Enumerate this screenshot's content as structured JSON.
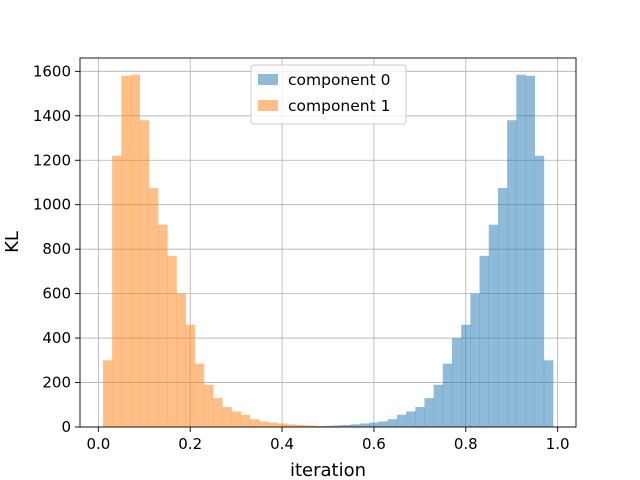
{
  "chart_data": {
    "type": "bar",
    "title": "",
    "xlabel": "iteration",
    "ylabel": "KL",
    "xlim": [
      -0.04,
      1.04
    ],
    "ylim": [
      0,
      1660
    ],
    "xticks": [
      0.0,
      0.2,
      0.4,
      0.6,
      0.8,
      1.0
    ],
    "xtick_labels": [
      "0.0",
      "0.2",
      "0.4",
      "0.6",
      "0.8",
      "1.0"
    ],
    "yticks": [
      0,
      200,
      400,
      600,
      800,
      1000,
      1200,
      1400,
      1600
    ],
    "ytick_labels": [
      "0",
      "200",
      "400",
      "600",
      "800",
      "1000",
      "1200",
      "1400",
      "1600"
    ],
    "grid": true,
    "legend_position": "top-center",
    "bin_width": 0.02,
    "series": [
      {
        "name": "component 0",
        "color": "#1f77b4",
        "opacity": 0.5,
        "bin_starts": [
          0.43,
          0.45,
          0.47,
          0.49,
          0.51,
          0.53,
          0.55,
          0.57,
          0.59,
          0.61,
          0.63,
          0.65,
          0.67,
          0.69,
          0.71,
          0.73,
          0.75,
          0.77,
          0.79,
          0.81,
          0.83,
          0.85,
          0.87,
          0.89,
          0.91,
          0.93,
          0.95,
          0.97
        ],
        "values": [
          1,
          2,
          3,
          5,
          7,
          9,
          12,
          16,
          20,
          25,
          35,
          55,
          70,
          90,
          130,
          190,
          285,
          400,
          460,
          600,
          770,
          910,
          1075,
          1380,
          1585,
          1580,
          1220,
          300
        ]
      },
      {
        "name": "component 1",
        "color": "#ff7f0e",
        "opacity": 0.5,
        "bin_starts": [
          0.01,
          0.03,
          0.05,
          0.07,
          0.09,
          0.11,
          0.13,
          0.15,
          0.17,
          0.19,
          0.21,
          0.23,
          0.25,
          0.27,
          0.29,
          0.31,
          0.33,
          0.35,
          0.37,
          0.39,
          0.41,
          0.43,
          0.45,
          0.47,
          0.49,
          0.51,
          0.53,
          0.55
        ],
        "values": [
          300,
          1220,
          1580,
          1585,
          1380,
          1075,
          910,
          770,
          600,
          460,
          285,
          190,
          130,
          90,
          70,
          55,
          35,
          25,
          20,
          16,
          12,
          9,
          7,
          5,
          3,
          2,
          1,
          1
        ]
      }
    ]
  }
}
